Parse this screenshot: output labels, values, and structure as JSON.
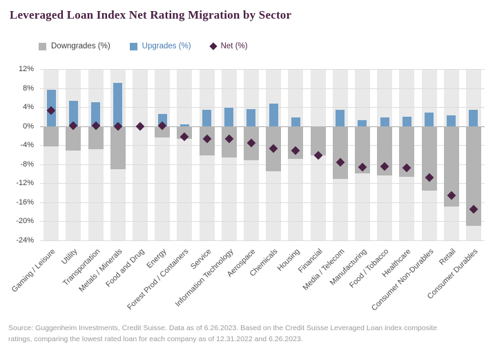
{
  "page": {
    "title": "Leveraged Loan Index Net Rating Migration by Sector",
    "source_lines": [
      "Source: Guggenheim Investments, Credit Suisse. Data as of 6.26.2023. Based on the Credit Suisse Leveraged Loan index composite",
      "ratings, comparing the lowest rated loan for each company as of 12.31.2022 and 6.26.2023."
    ]
  },
  "legend": {
    "downgrades": {
      "label": "Downgrades (%)"
    },
    "upgrades": {
      "label": "Upgrades (%)"
    },
    "net": {
      "label": "Net (%)"
    }
  },
  "colors": {
    "title": "#4b2145",
    "downgrades_bar": "#b4b4b4",
    "upgrades_bar": "#6d9dc6",
    "net_marker": "#4b2145",
    "band": "#e9e9e9",
    "gridline": "#dcdcdc",
    "zero_line": "#a9a9a9",
    "upgrades_text": "#4479b2"
  },
  "chart_data": {
    "type": "bar",
    "title": "Leveraged Loan Index Net Rating Migration by Sector",
    "xlabel": "",
    "ylabel": "",
    "ylim": [
      -24,
      12
    ],
    "ytick_step": 4,
    "ytick_suffix": "%",
    "grid": true,
    "legend_position": "top",
    "categories": [
      "Gaming / Leisure",
      "Utility",
      "Transportation",
      "Metals / Minerals",
      "Food and Drug",
      "Energy",
      "Forest Prod / Containers",
      "Service",
      "Information Technology",
      "Aerospace",
      "Chemicals",
      "Housing",
      "Financial",
      "Media / Telecom",
      "Manufacturing",
      "Food / Tobacco",
      "Healthcare",
      "Consumer Non-Durables",
      "Retail",
      "Consumer Durables"
    ],
    "series": [
      {
        "name": "Downgrades (%)",
        "type": "bar",
        "color": "#b4b4b4",
        "values": [
          -4.3,
          -5.2,
          -4.9,
          -9.1,
          0,
          -2.4,
          -2.6,
          -6.1,
          -6.6,
          -7.2,
          -9.5,
          -6.9,
          -6.2,
          -11.1,
          -9.9,
          -10.3,
          -10.7,
          -13.6,
          -16.9,
          -20.9
        ]
      },
      {
        "name": "Upgrades (%)",
        "type": "bar",
        "color": "#6d9dc6",
        "values": [
          7.6,
          5.3,
          5.0,
          9.1,
          0,
          2.5,
          0.4,
          3.4,
          3.9,
          3.6,
          4.8,
          1.8,
          0,
          3.5,
          1.3,
          1.8,
          2.0,
          2.8,
          2.3,
          3.5
        ]
      },
      {
        "name": "Net (%)",
        "type": "scatter-diamond",
        "color": "#4b2145",
        "values": [
          3.3,
          0.1,
          0.1,
          0,
          0,
          0.1,
          -2.2,
          -2.7,
          -2.7,
          -3.6,
          -4.7,
          -5.1,
          -6.2,
          -7.6,
          -8.6,
          -8.5,
          -8.7,
          -10.8,
          -14.6,
          -17.4
        ]
      }
    ]
  }
}
